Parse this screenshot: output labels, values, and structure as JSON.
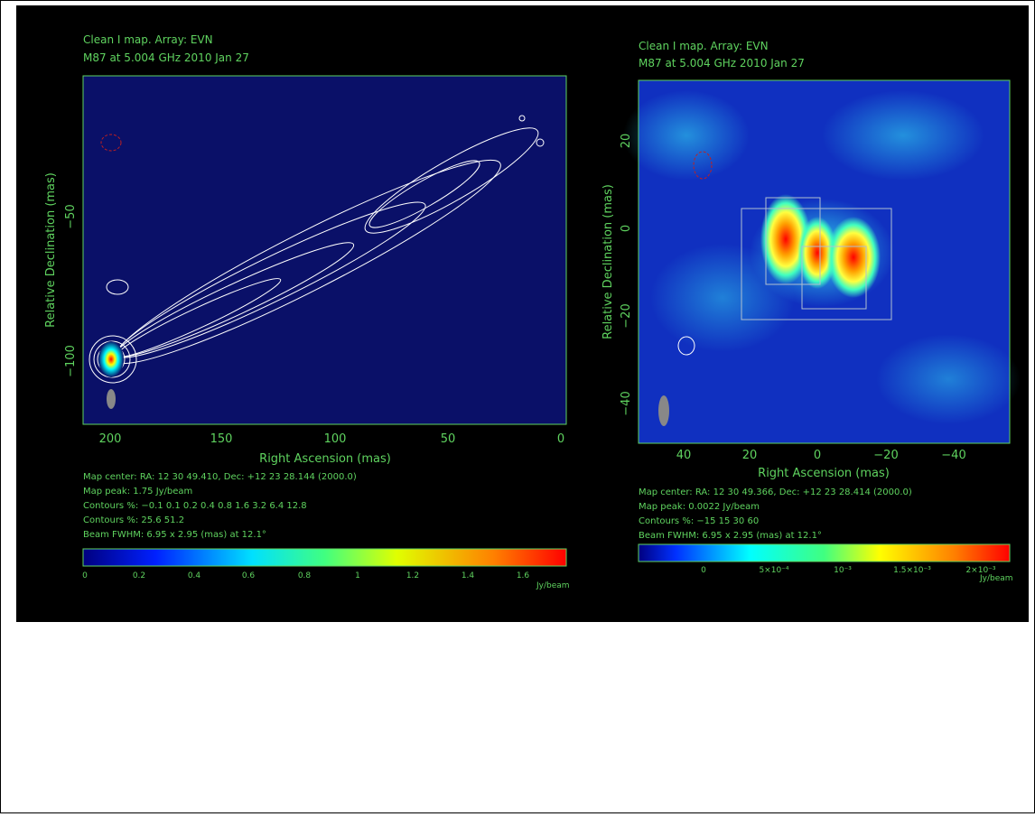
{
  "panels": [
    {
      "title": [
        "Clean I map.  Array:  EVN",
        "M87 at 5.004 GHz 2010 Jan 27"
      ],
      "x_label": "Right Ascension  (mas)",
      "y_label": "Relative Declination  (mas)",
      "x_ticks": [
        "200",
        "150",
        "100",
        "50",
        "0"
      ],
      "y_ticks": [
        "−50",
        "−100"
      ],
      "info": [
        "Map center:  RA: 12 30 49.410,  Dec: +12 23 28.144 (2000.0)",
        "Map peak: 1.75 Jy/beam",
        "Contours %: −0.1 0.1 0.2 0.4 0.8 1.6 3.2 6.4 12.8",
        "Contours %: 25.6 51.2",
        "Beam FWHM: 6.95 x 2.95 (mas) at 12.1°"
      ],
      "colorbar_ticks": [
        "0",
        "0.2",
        "0.4",
        "0.6",
        "0.8",
        "1",
        "1.2",
        "1.4",
        "1.6"
      ],
      "colorbar_unit": "Jy/beam"
    },
    {
      "title": [
        "Clean I map.  Array:  EVN",
        "M87 at 5.004 GHz 2010 Jan 27"
      ],
      "x_label": "Right Ascension  (mas)",
      "y_label": "Relative Declination  (mas)",
      "x_ticks": [
        "40",
        "20",
        "0",
        "−20",
        "−40"
      ],
      "y_ticks": [
        "20",
        "0",
        "−20",
        "−40"
      ],
      "info": [
        "Map center:  RA: 12 30 49.366,  Dec: +12 23 28.414 (2000.0)",
        "Map peak: 0.0022 Jy/beam",
        "Contours %: −15 15 30 60",
        "Beam FWHM: 6.95 x 2.95 (mas) at 12.1°"
      ],
      "colorbar_ticks": [
        "0",
        "5×10⁻⁴",
        "10⁻³",
        "1.5×10⁻³",
        "2×10⁻³"
      ],
      "colorbar_unit": "Jy/beam"
    }
  ]
}
